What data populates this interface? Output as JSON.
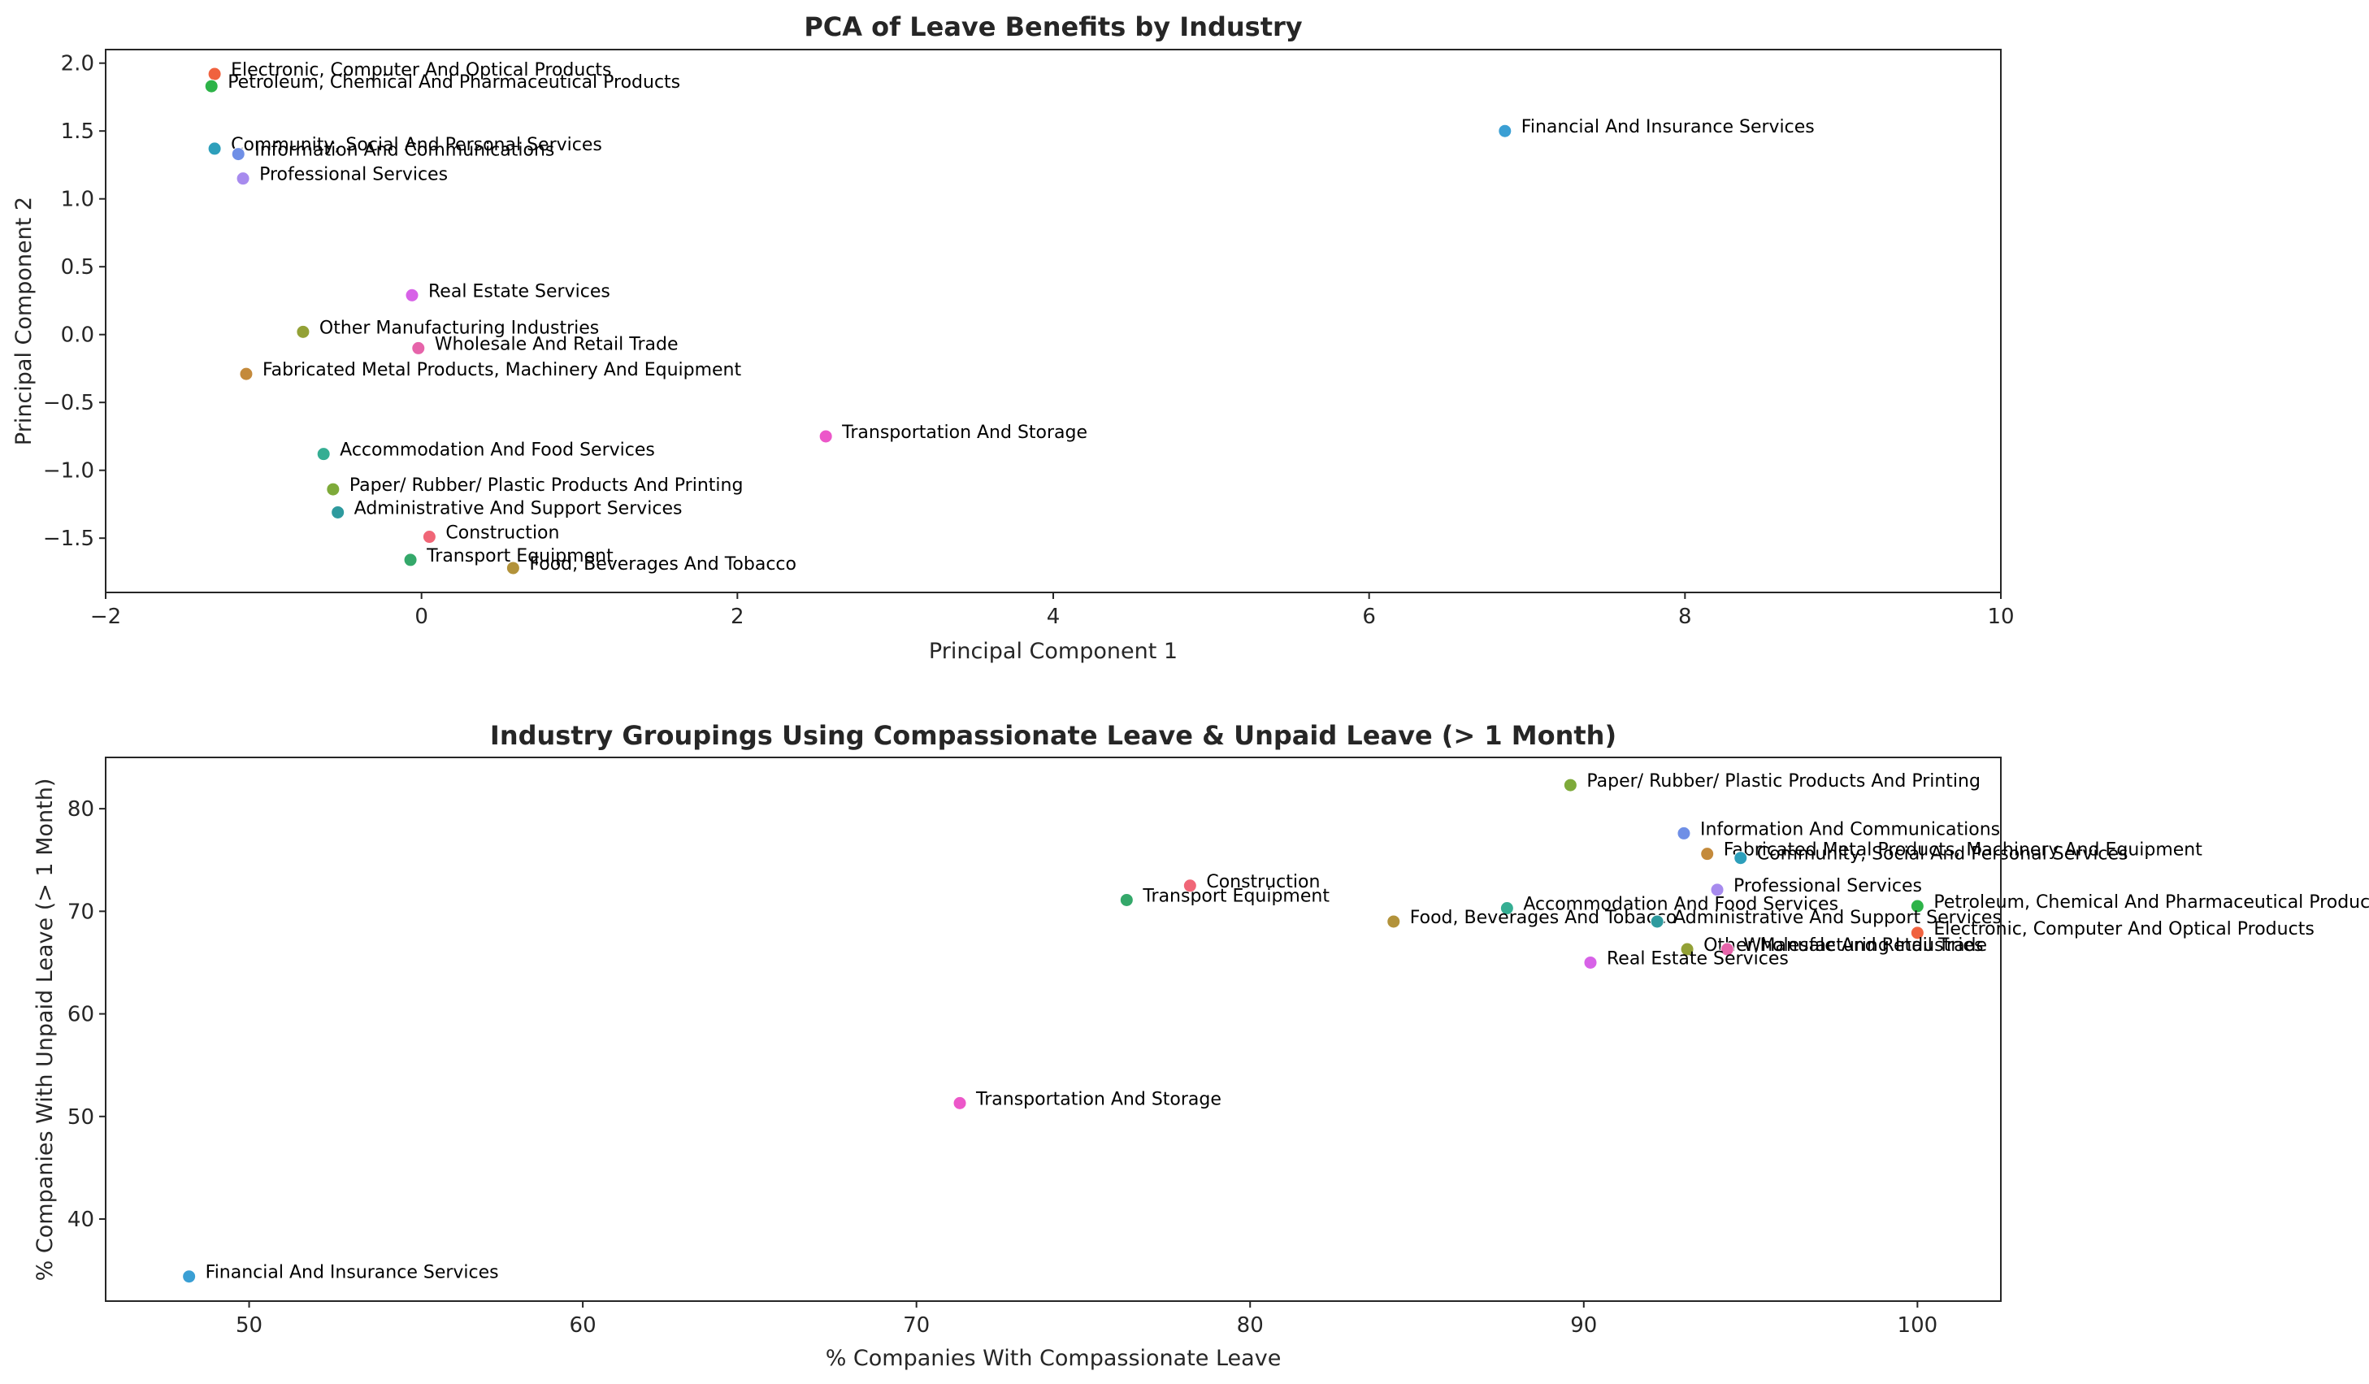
{
  "chart_data": [
    {
      "type": "scatter",
      "title": "PCA of Leave Benefits by Industry",
      "xlabel": "Principal Component 1",
      "ylabel": "Principal Component 2",
      "xlim": [
        -2,
        10
      ],
      "ylim": [
        -1.9,
        2.1
      ],
      "xticks": [
        -2,
        0,
        2,
        4,
        6,
        8,
        10
      ],
      "xtick_labels": [
        "−2",
        "0",
        "2",
        "4",
        "6",
        "8",
        "10"
      ],
      "yticks": [
        -1.5,
        -1.0,
        -0.5,
        0.0,
        0.5,
        1.0,
        1.5,
        2.0
      ],
      "ytick_labels": [
        "−1.5",
        "−1.0",
        "−0.5",
        "0.0",
        "0.5",
        "1.0",
        "1.5",
        "2.0"
      ],
      "grid": false,
      "points": [
        {
          "label": "Electronic, Computer And Optical Products",
          "x": -1.31,
          "y": 1.92,
          "color": "#f0623f"
        },
        {
          "label": "Petroleum, Chemical And Pharmaceutical Products",
          "x": -1.33,
          "y": 1.83,
          "color": "#2db348"
        },
        {
          "label": "Financial And Insurance Services",
          "x": 6.86,
          "y": 1.5,
          "color": "#3a9fd4"
        },
        {
          "label": "Community, Social And Personal Services",
          "x": -1.31,
          "y": 1.37,
          "color": "#2d9fbb"
        },
        {
          "label": "Information And Communications",
          "x": -1.16,
          "y": 1.33,
          "color": "#6f8fe6"
        },
        {
          "label": "Professional Services",
          "x": -1.13,
          "y": 1.15,
          "color": "#a78bee"
        },
        {
          "label": "Real Estate Services",
          "x": -0.06,
          "y": 0.29,
          "color": "#d762e7"
        },
        {
          "label": "Other Manufacturing Industries",
          "x": -0.75,
          "y": 0.02,
          "color": "#93a136"
        },
        {
          "label": "Wholesale And Retail Trade",
          "x": -0.02,
          "y": -0.1,
          "color": "#e664aa"
        },
        {
          "label": "Fabricated Metal Products, Machinery And Equipment",
          "x": -1.11,
          "y": -0.29,
          "color": "#c48a3b"
        },
        {
          "label": "Transportation And Storage",
          "x": 2.56,
          "y": -0.75,
          "color": "#ec57c9"
        },
        {
          "label": "Accommodation And Food Services",
          "x": -0.62,
          "y": -0.88,
          "color": "#35ae93"
        },
        {
          "label": "Paper/ Rubber/ Plastic Products And Printing",
          "x": -0.56,
          "y": -1.14,
          "color": "#7eaa3a"
        },
        {
          "label": "Administrative And Support Services",
          "x": -0.53,
          "y": -1.31,
          "color": "#2e9a9e"
        },
        {
          "label": "Construction",
          "x": 0.05,
          "y": -1.49,
          "color": "#f06677"
        },
        {
          "label": "Transport Equipment",
          "x": -0.07,
          "y": -1.66,
          "color": "#34a86a"
        },
        {
          "label": "Food, Beverages And Tobacco",
          "x": 0.58,
          "y": -1.72,
          "color": "#b2923a"
        }
      ]
    },
    {
      "type": "scatter",
      "title": "Industry Groupings Using Compassionate Leave & Unpaid Leave (> 1 Month)",
      "xlabel": "% Companies With Compassionate Leave",
      "ylabel": "% Companies With Unpaid Leave (> 1 Month)",
      "xlim": [
        45.7,
        102.5
      ],
      "ylim": [
        32,
        85
      ],
      "xticks": [
        50,
        60,
        70,
        80,
        90,
        100
      ],
      "xtick_labels": [
        "50",
        "60",
        "70",
        "80",
        "90",
        "100"
      ],
      "yticks": [
        40,
        50,
        60,
        70,
        80
      ],
      "ytick_labels": [
        "40",
        "50",
        "60",
        "70",
        "80"
      ],
      "grid": false,
      "points": [
        {
          "label": "Paper/ Rubber/ Plastic Products And Printing",
          "x": 89.6,
          "y": 82.3,
          "color": "#7eaa3a"
        },
        {
          "label": "Information And Communications",
          "x": 93.0,
          "y": 77.6,
          "color": "#6f8fe6"
        },
        {
          "label": "Fabricated Metal Products, Machinery And Equipment",
          "x": 93.7,
          "y": 75.6,
          "color": "#c48a3b"
        },
        {
          "label": "Community, Social And Personal Services",
          "x": 94.7,
          "y": 75.2,
          "color": "#2d9fbb"
        },
        {
          "label": "Construction",
          "x": 78.2,
          "y": 72.5,
          "color": "#f06677"
        },
        {
          "label": "Professional Services",
          "x": 94.0,
          "y": 72.1,
          "color": "#a78bee"
        },
        {
          "label": "Transport Equipment",
          "x": 76.3,
          "y": 71.1,
          "color": "#34a86a"
        },
        {
          "label": "Petroleum, Chemical And Pharmaceutical Products",
          "x": 100.0,
          "y": 70.5,
          "color": "#2db348"
        },
        {
          "label": "Accommodation And Food Services",
          "x": 87.7,
          "y": 70.3,
          "color": "#35ae93"
        },
        {
          "label": "Food, Beverages And Tobacco",
          "x": 84.3,
          "y": 69.0,
          "color": "#b2923a"
        },
        {
          "label": "Administrative And Support Services",
          "x": 92.2,
          "y": 69.0,
          "color": "#2e9a9e"
        },
        {
          "label": "Electronic, Computer And Optical Products",
          "x": 100.0,
          "y": 67.9,
          "color": "#f0623f"
        },
        {
          "label": "Other Manufacturing Industries",
          "x": 93.1,
          "y": 66.3,
          "color": "#93a136"
        },
        {
          "label": "Wholesale And Retail Trade",
          "x": 94.3,
          "y": 66.3,
          "color": "#e664aa"
        },
        {
          "label": "Real Estate Services",
          "x": 90.2,
          "y": 65.0,
          "color": "#d762e7"
        },
        {
          "label": "Transportation And Storage",
          "x": 71.3,
          "y": 51.3,
          "color": "#ec57c9"
        },
        {
          "label": "Financial And Insurance Services",
          "x": 48.2,
          "y": 34.4,
          "color": "#3a9fd4"
        }
      ]
    }
  ]
}
